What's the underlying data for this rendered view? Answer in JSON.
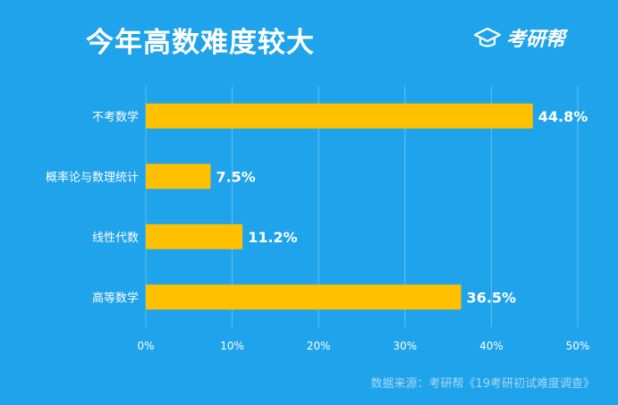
{
  "header": {
    "title": "今年高数难度较大",
    "brand_name": "考研帮",
    "brand_icon": "graduation-cap-icon"
  },
  "footer": {
    "source": "数据来源：考研帮《19考研初试难度调查》"
  },
  "colors": {
    "background": "#1fa3eb",
    "bar": "#ffc000",
    "text": "#ffffff",
    "grid": "#5fc0f2",
    "footer": "#a8d9f7"
  },
  "chart_data": {
    "type": "bar",
    "orientation": "horizontal",
    "categories": [
      "不考数学",
      "概率论与数理统计",
      "线性代数",
      "高等数学"
    ],
    "values": [
      44.8,
      7.5,
      11.2,
      36.5
    ],
    "value_labels": [
      "44.8%",
      "7.5%",
      "11.2%",
      "36.5%"
    ],
    "xlim": [
      0,
      50
    ],
    "xticks": [
      0,
      10,
      20,
      30,
      40,
      50
    ],
    "xtick_labels": [
      "0%",
      "10%",
      "20%",
      "30%",
      "40%",
      "50%"
    ],
    "grid": true,
    "title": "今年高数难度较大"
  }
}
